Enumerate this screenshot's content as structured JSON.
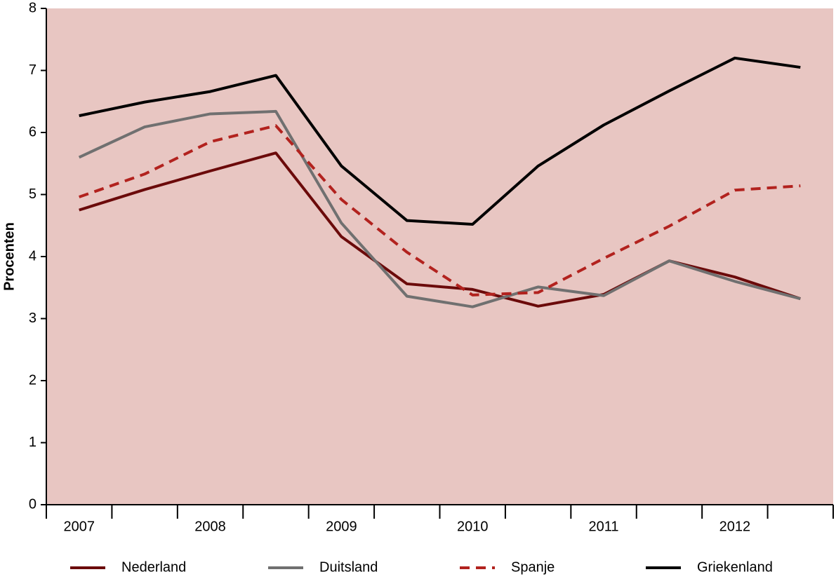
{
  "chart_data": {
    "type": "line",
    "y_label": "Procenten",
    "categories": [
      "2007",
      null,
      "2008",
      null,
      "2009",
      null,
      "2010",
      null,
      "2011",
      null,
      "2012",
      null
    ],
    "series": [
      {
        "name": "Nederland",
        "color": "#6b0a0a",
        "linestyle": "solid",
        "values": [
          4.75,
          5.08,
          5.38,
          5.67,
          4.32,
          3.56,
          3.47,
          3.2,
          3.39,
          3.93,
          3.67,
          3.32
        ]
      },
      {
        "name": "Duitsland",
        "color": "#707070",
        "linestyle": "solid",
        "values": [
          5.6,
          6.09,
          6.3,
          6.34,
          4.54,
          3.36,
          3.19,
          3.51,
          3.37,
          3.93,
          3.6,
          3.32
        ]
      },
      {
        "name": "Spanje",
        "color": "#b2221e",
        "linestyle": "dashed",
        "values": [
          4.96,
          5.33,
          5.85,
          6.11,
          4.92,
          4.07,
          3.38,
          3.42,
          3.97,
          4.49,
          5.07,
          5.14
        ]
      },
      {
        "name": "Griekenland",
        "color": "#000000",
        "linestyle": "solid",
        "values": [
          6.27,
          6.49,
          6.66,
          6.92,
          5.46,
          4.58,
          4.52,
          5.46,
          6.12,
          6.67,
          7.2,
          7.05
        ]
      }
    ],
    "ylim": [
      0,
      8
    ],
    "yticks": [
      0,
      1,
      2,
      3,
      4,
      5,
      6,
      7,
      8
    ],
    "background": "#e8c6c2",
    "legend": "bottom"
  }
}
